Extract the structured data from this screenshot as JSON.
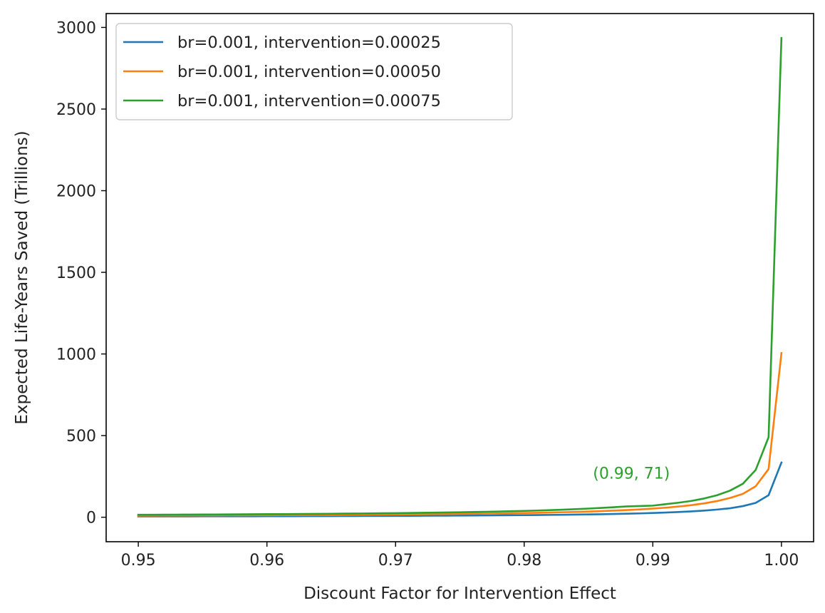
{
  "chart_data": {
    "type": "line",
    "title": "",
    "xlabel": "Discount Factor for Intervention Effect",
    "ylabel": "Expected Life-Years Saved (Trillions)",
    "xlim": [
      0.9475,
      1.0025
    ],
    "ylim": [
      -150,
      3085
    ],
    "xticks": [
      0.95,
      0.96,
      0.97,
      0.98,
      0.99,
      1.0
    ],
    "xtick_labels": [
      "0.95",
      "0.96",
      "0.97",
      "0.98",
      "0.99",
      "1.00"
    ],
    "yticks": [
      0,
      500,
      1000,
      1500,
      2000,
      2500,
      3000
    ],
    "ytick_labels": [
      "0",
      "500",
      "1000",
      "1500",
      "2000",
      "2500",
      "3000"
    ],
    "grid": false,
    "legend_position": "top-left",
    "x": [
      0.95,
      0.951,
      0.952,
      0.953,
      0.954,
      0.955,
      0.956,
      0.957,
      0.958,
      0.959,
      0.96,
      0.961,
      0.962,
      0.963,
      0.964,
      0.965,
      0.966,
      0.967,
      0.968,
      0.969,
      0.97,
      0.971,
      0.972,
      0.973,
      0.974,
      0.975,
      0.976,
      0.977,
      0.978,
      0.979,
      0.98,
      0.981,
      0.982,
      0.983,
      0.984,
      0.985,
      0.986,
      0.987,
      0.988,
      0.989,
      0.99,
      0.991,
      0.992,
      0.993,
      0.994,
      0.995,
      0.996,
      0.997,
      0.998,
      0.999,
      1.0
    ],
    "series": [
      {
        "name": "br=0.001, intervention=0.00025",
        "color": "#1f77b4",
        "values": [
          5.0,
          5.1,
          5.2,
          5.3,
          5.4,
          5.5,
          5.6,
          5.8,
          5.9,
          6.0,
          6.2,
          6.4,
          6.5,
          6.7,
          6.9,
          7.1,
          7.3,
          7.6,
          7.8,
          8.1,
          8.3,
          8.6,
          9.0,
          9.3,
          9.7,
          10.1,
          10.6,
          11.0,
          11.6,
          12.2,
          12.8,
          13.5,
          14.3,
          15.1,
          16.1,
          17.2,
          18.5,
          19.9,
          21.6,
          23.5,
          25.8,
          28.5,
          31.8,
          35.8,
          40.8,
          47.0,
          55.0,
          68.0,
          88.0,
          135.0,
          335.0
        ]
      },
      {
        "name": "br=0.001, intervention=0.00050",
        "color": "#ff7f0e",
        "values": [
          10.0,
          10.2,
          10.4,
          10.6,
          10.8,
          11.0,
          11.3,
          11.5,
          11.8,
          12.1,
          12.4,
          12.7,
          13.0,
          13.4,
          13.8,
          14.2,
          14.7,
          15.1,
          15.6,
          16.2,
          16.7,
          17.3,
          18.0,
          18.7,
          19.5,
          20.3,
          21.2,
          22.2,
          23.3,
          24.5,
          25.8,
          27.2,
          28.9,
          30.6,
          32.6,
          34.9,
          37.5,
          40.5,
          44.0,
          48.0,
          53.0,
          58.5,
          65.5,
          74.0,
          85.0,
          99.0,
          118.0,
          143.0,
          190.0,
          295.0,
          1005.0
        ]
      },
      {
        "name": "br=0.001, intervention=0.00075",
        "color": "#2ca02c",
        "values": [
          15.0,
          15.3,
          15.6,
          15.9,
          16.3,
          16.6,
          17.0,
          17.4,
          17.8,
          18.2,
          18.7,
          19.1,
          19.6,
          20.2,
          20.7,
          21.3,
          22.0,
          22.7,
          23.4,
          24.2,
          25.0,
          26.0,
          27.0,
          28.0,
          29.2,
          30.5,
          31.8,
          33.3,
          35.0,
          36.8,
          38.8,
          41.0,
          43.5,
          46.3,
          49.5,
          53.0,
          57.0,
          61.5,
          66.5,
          68.7,
          71.0,
          80.0,
          89.0,
          100.0,
          115.0,
          135.0,
          163.0,
          205.0,
          290.0,
          490.0,
          2935.0
        ]
      }
    ],
    "annotations": [
      {
        "text": "(0.99, 71)",
        "x": 0.99,
        "y": 71,
        "color": "#2ca02c"
      }
    ]
  }
}
